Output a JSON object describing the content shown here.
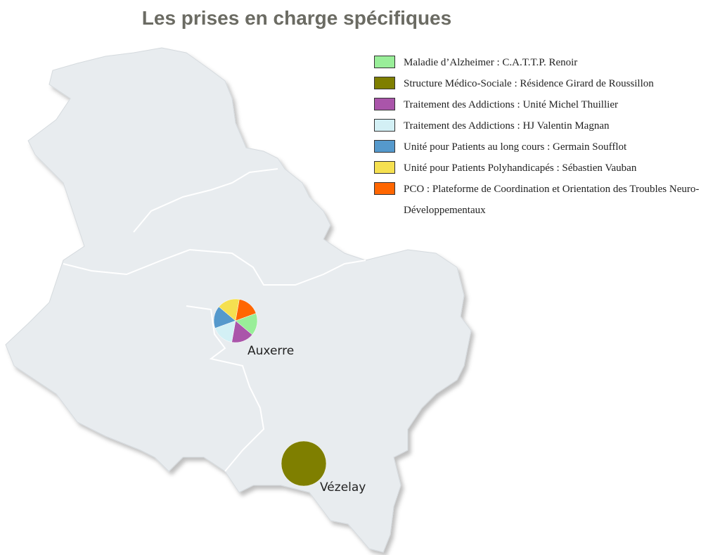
{
  "title": "Les prises en charge spécifiques",
  "legend": {
    "items": [
      {
        "label": "Maladie d’Alzheimer : C.A.T.T.P. Renoir",
        "color": "#99ee99"
      },
      {
        "label": "Structure Médico-Sociale : Résidence Girard de Roussillon",
        "color": "#7f7f00"
      },
      {
        "label": "Traitement des Addictions : Unité Michel Thuillier",
        "color": "#aa55aa"
      },
      {
        "label": "Traitement des Addictions : HJ Valentin Magnan",
        "color": "#d3f0f5"
      },
      {
        "label": "Unité pour Patients au long cours : Germain Soufflot",
        "color": "#5599cc"
      },
      {
        "label": "Unité pour Patients Polyhandicapés : Sébastien Vauban",
        "color": "#f5e050"
      },
      {
        "label": "PCO : Plateforme de Coordination et Orientation des Troubles Neuro-Développementaux",
        "color": "#ff6600"
      }
    ]
  },
  "places": [
    {
      "name": "Auxerre",
      "shares": [
        1,
        0,
        1,
        1,
        1,
        1,
        1
      ]
    },
    {
      "name": "Vézelay",
      "shares": [
        0,
        1,
        0,
        0,
        0,
        0,
        0
      ]
    }
  ]
}
